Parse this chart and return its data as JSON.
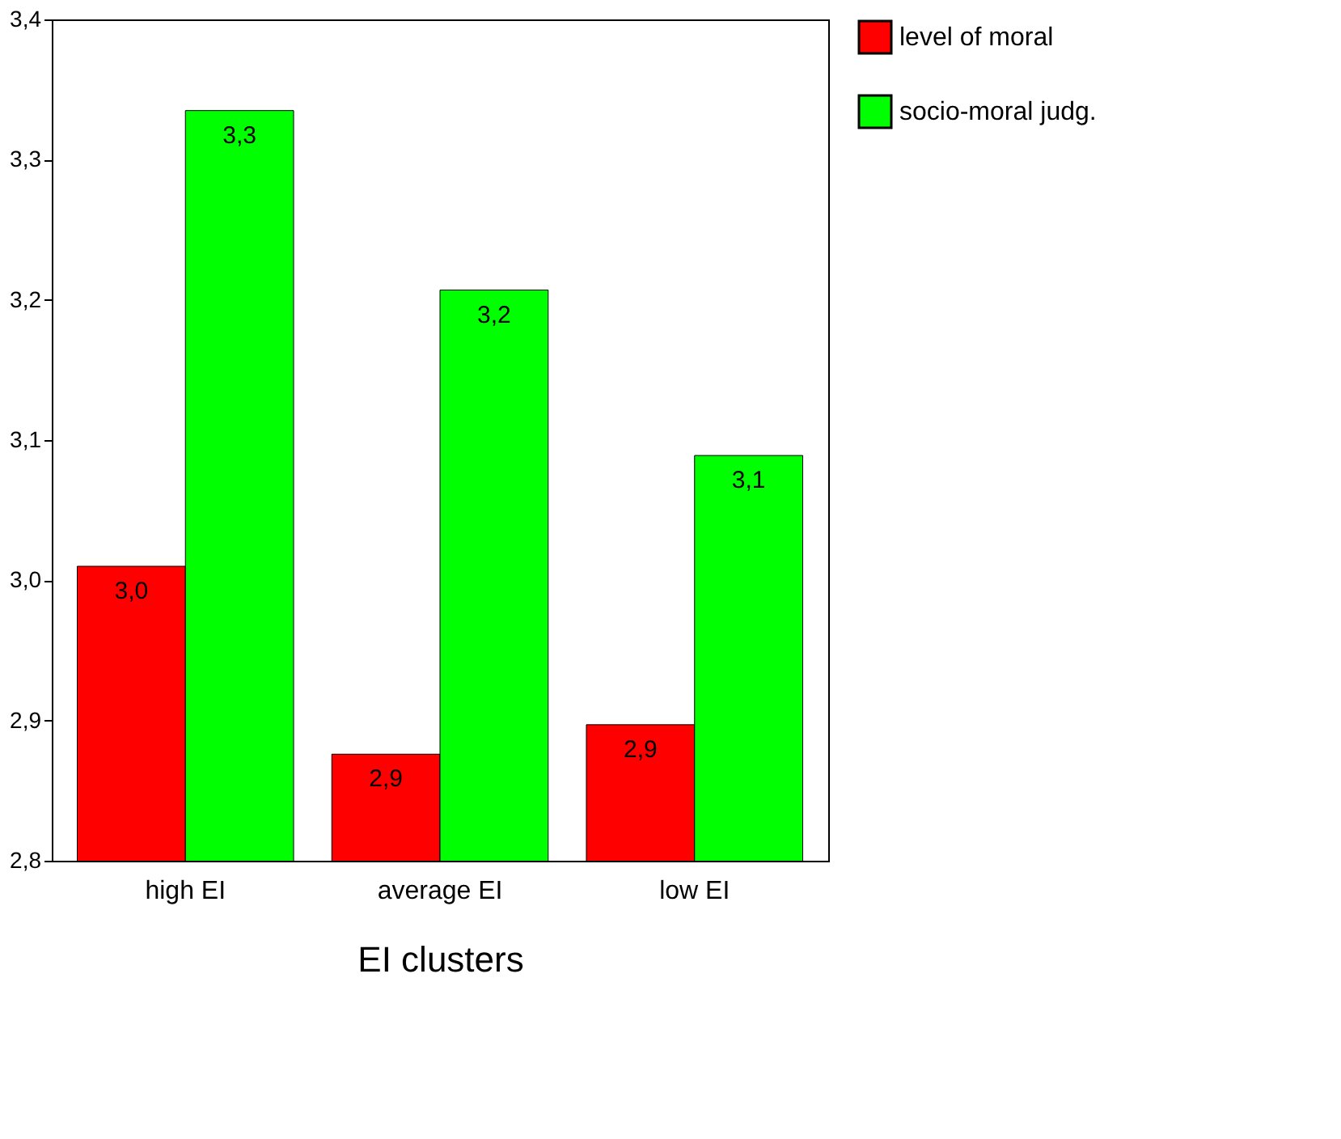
{
  "chart_data": {
    "type": "bar",
    "xlabel": "EI clusters",
    "categories": [
      "high EI",
      "average EI",
      "low EI"
    ],
    "series": [
      {
        "name": "level of moral",
        "color": "#ff0000",
        "values": [
          3.01,
          2.876,
          2.897
        ],
        "value_labels": [
          "3,0",
          "2,9",
          "2,9"
        ]
      },
      {
        "name": "socio-moral judg.",
        "color": "#00ff00",
        "values": [
          3.335,
          3.207,
          3.089
        ],
        "value_labels": [
          "3,3",
          "3,2",
          "3,1"
        ]
      }
    ],
    "ylim": [
      2.8,
      3.4
    ],
    "yticks": [
      {
        "value": 2.8,
        "label": "2,8"
      },
      {
        "value": 2.9,
        "label": "2,9"
      },
      {
        "value": 3.0,
        "label": "3,0"
      },
      {
        "value": 3.1,
        "label": "3,1"
      },
      {
        "value": 3.2,
        "label": "3,2"
      },
      {
        "value": 3.3,
        "label": "3,3"
      },
      {
        "value": 3.4,
        "label": "3,4"
      }
    ],
    "grid": false,
    "legend": "right"
  }
}
